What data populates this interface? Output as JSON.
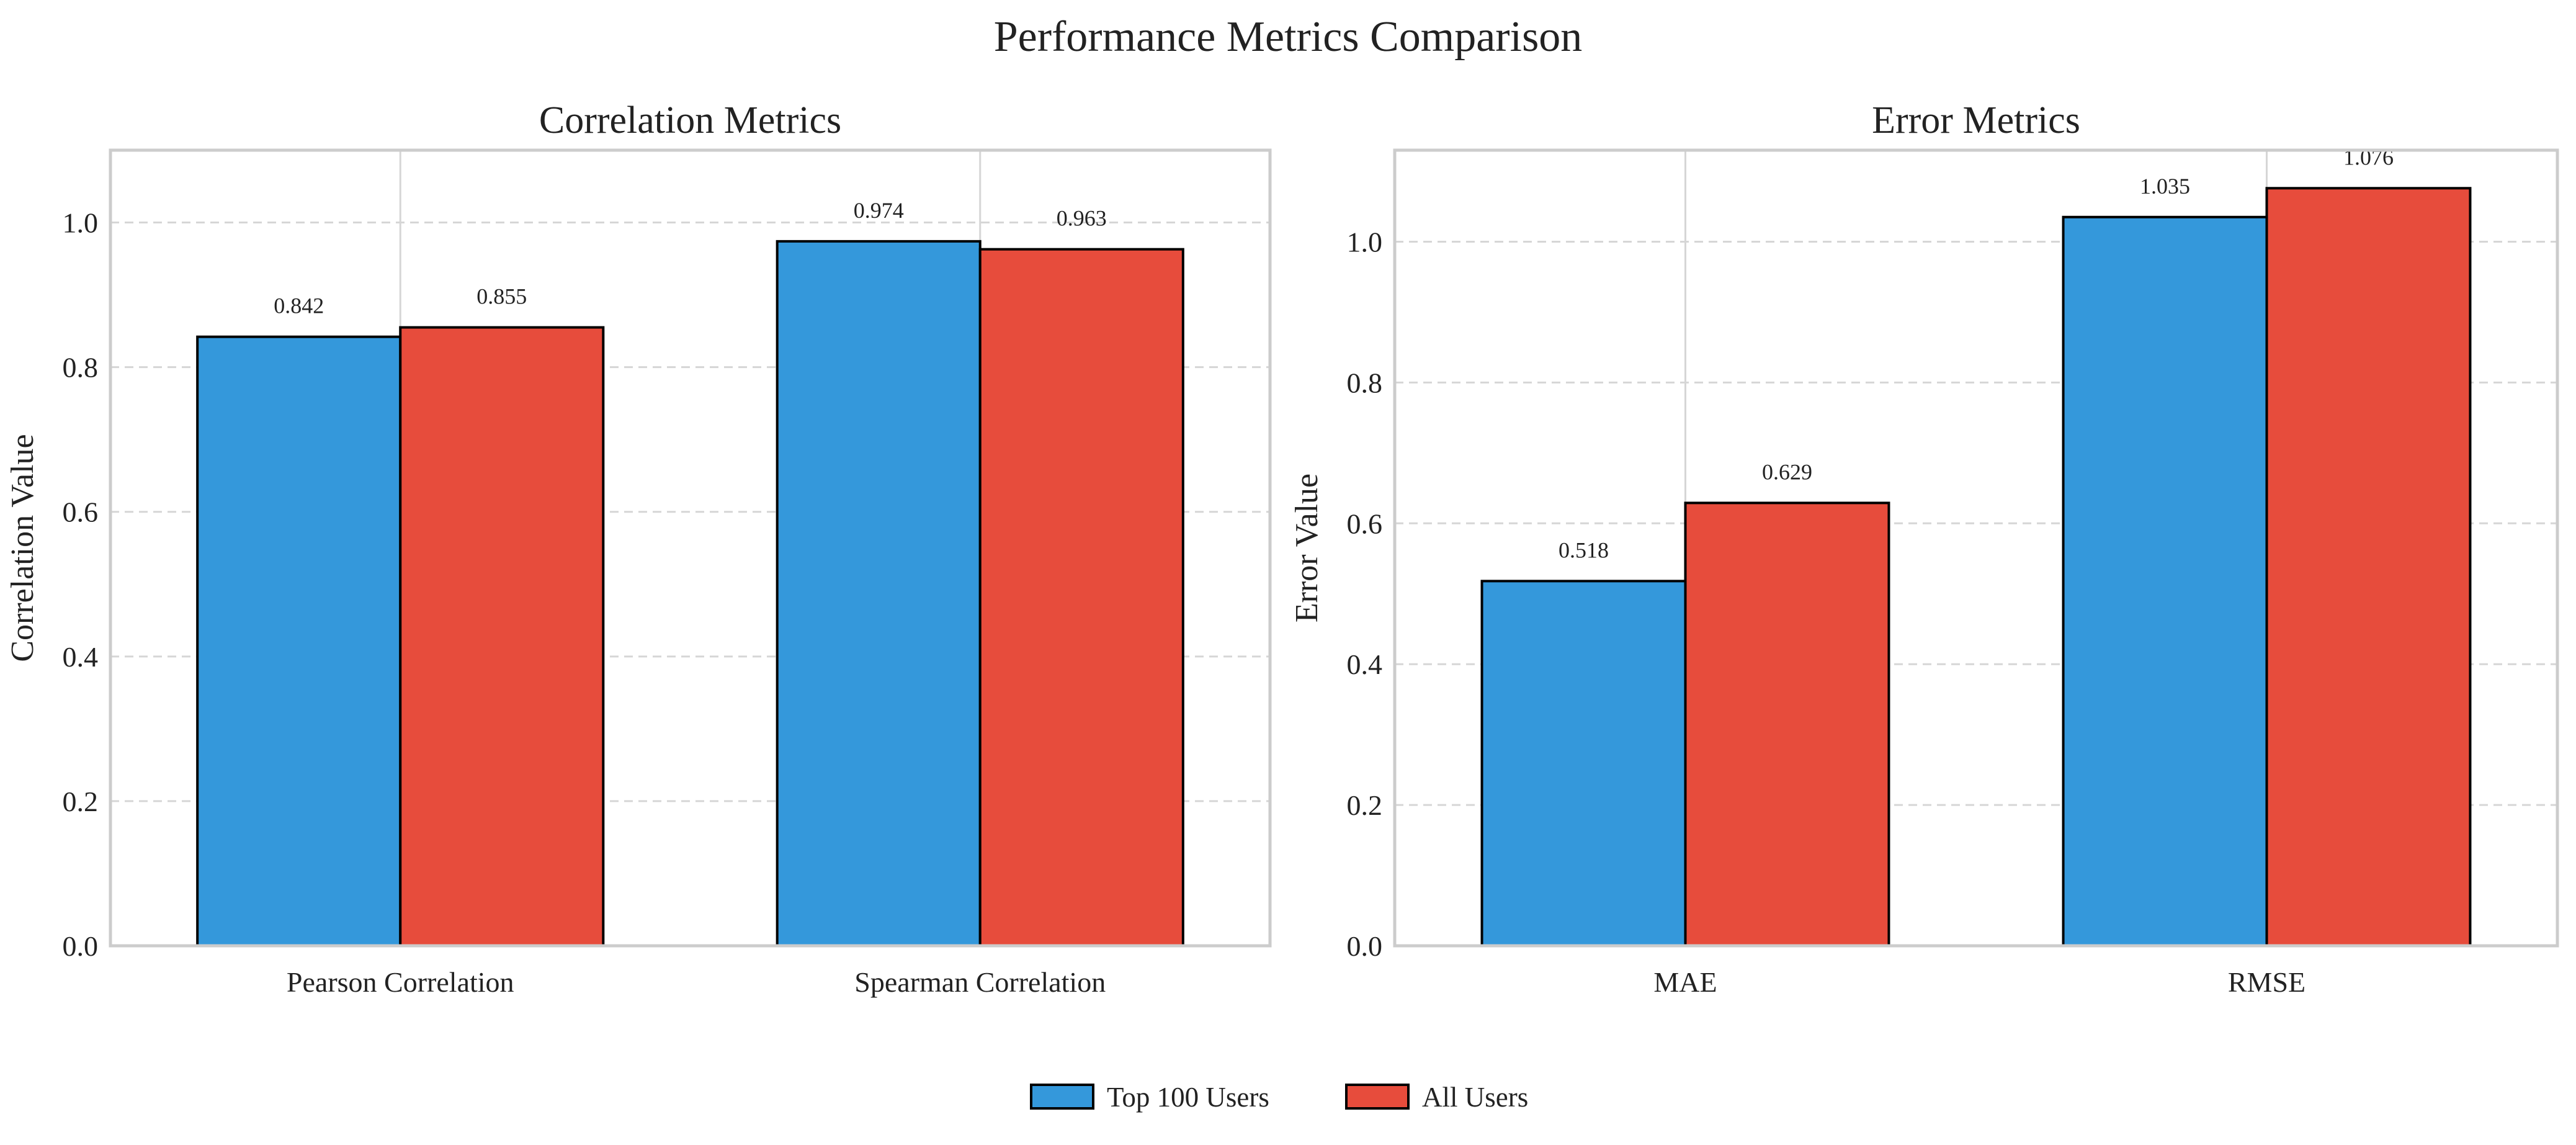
{
  "suptitle": "Performance Metrics Comparison",
  "legend": {
    "placement": "bottom-center",
    "entries": [
      {
        "name": "Top 100 Users",
        "color": "#3498db"
      },
      {
        "name": "All Users",
        "color": "#e74c3c"
      }
    ]
  },
  "chart_data": [
    {
      "type": "bar",
      "title": "Correlation Metrics",
      "xlabel": "",
      "ylabel": "Correlation Value",
      "categories": [
        "Pearson Correlation",
        "Spearman Correlation"
      ],
      "ylim": [
        0,
        1.1
      ],
      "yticks": [
        0.0,
        0.2,
        0.4,
        0.6,
        0.8,
        1.0
      ],
      "grid": true,
      "series": [
        {
          "name": "Top 100 Users",
          "color": "#3498db",
          "values": [
            0.842,
            0.974
          ],
          "labels": [
            "0.842",
            "0.974"
          ]
        },
        {
          "name": "All Users",
          "color": "#e74c3c",
          "values": [
            0.855,
            0.963
          ],
          "labels": [
            "0.855",
            "0.963"
          ]
        }
      ]
    },
    {
      "type": "bar",
      "title": "Error Metrics",
      "xlabel": "",
      "ylabel": "Error Value",
      "categories": [
        "MAE",
        "RMSE"
      ],
      "ylim": [
        0,
        1.13
      ],
      "yticks": [
        0.0,
        0.2,
        0.4,
        0.6,
        0.8,
        1.0
      ],
      "grid": true,
      "series": [
        {
          "name": "Top 100 Users",
          "color": "#3498db",
          "values": [
            0.518,
            1.035
          ],
          "labels": [
            "0.518",
            "1.035"
          ]
        },
        {
          "name": "All Users",
          "color": "#e74c3c",
          "values": [
            0.629,
            1.076
          ],
          "labels": [
            "0.629",
            "1.076"
          ]
        }
      ]
    }
  ]
}
